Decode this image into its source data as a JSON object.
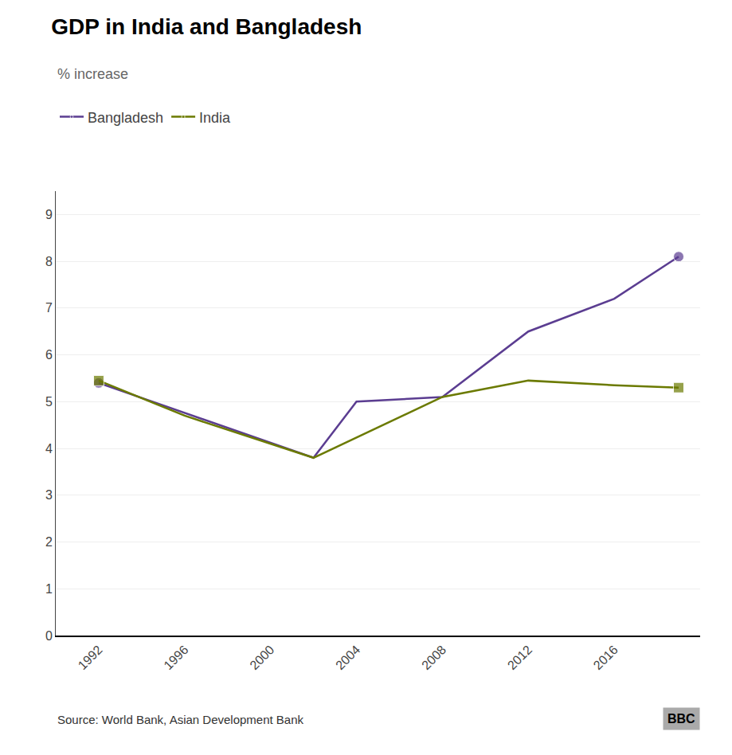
{
  "chart_data": {
    "type": "line",
    "title": "GDP in India and Bangladesh",
    "subtitle": "% increase",
    "annotations": [
      "Source: World Bank, Asian Development Bank",
      "BBC"
    ],
    "series": [
      {
        "name": "Bangladesh",
        "color": "#5b3d91",
        "marker": "circle",
        "x": [
          1992,
          2002,
          2004,
          2008,
          2012,
          2016,
          2019
        ],
        "values": [
          5.4,
          3.8,
          5.0,
          5.1,
          6.5,
          7.2,
          8.1
        ]
      },
      {
        "name": "India",
        "color": "#6b7a00",
        "marker": "square",
        "x": [
          1992,
          1996,
          2002,
          2008,
          2012,
          2016,
          2019
        ],
        "values": [
          5.45,
          4.7,
          3.8,
          5.1,
          5.45,
          5.35,
          5.3
        ]
      }
    ],
    "xlim": [
      1990,
      2020
    ],
    "xticks": [
      1992,
      1996,
      2000,
      2004,
      2008,
      2012,
      2016
    ],
    "ylim": [
      0,
      9.5
    ],
    "yticks": [
      0,
      1,
      2,
      3,
      4,
      5,
      6,
      7,
      8,
      9
    ],
    "grid": true,
    "legend": "top left"
  }
}
